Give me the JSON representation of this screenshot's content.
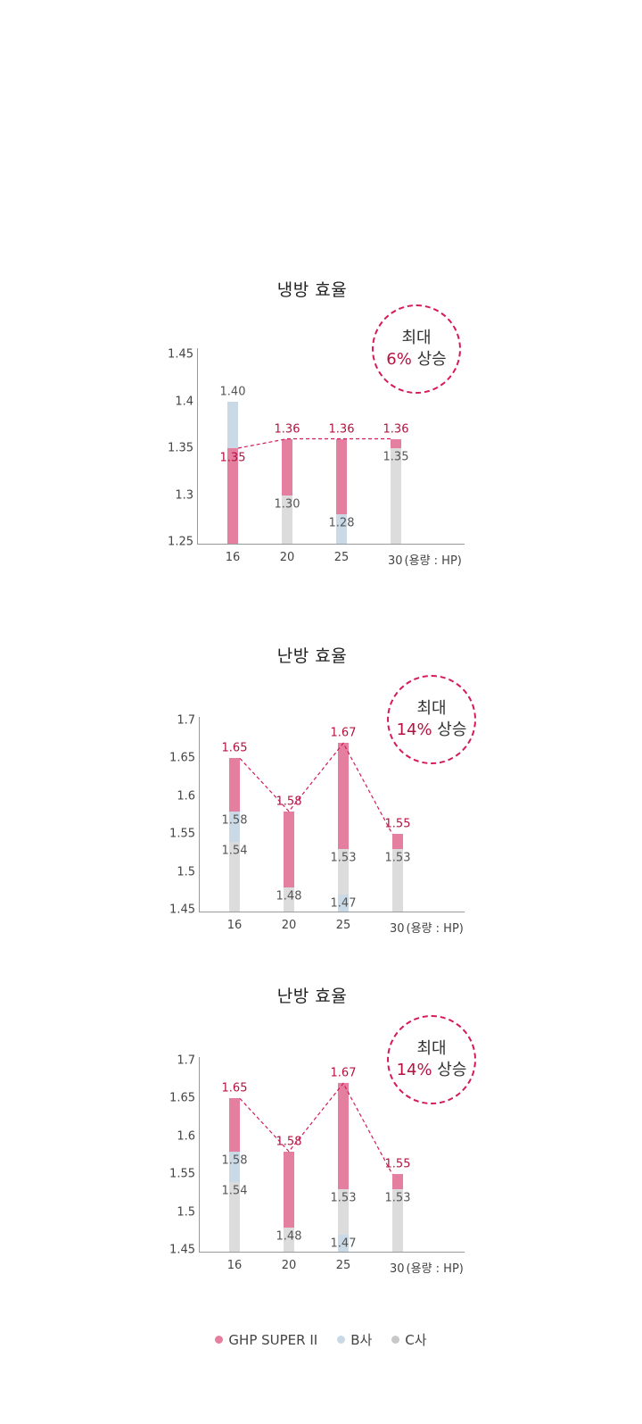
{
  "colors": {
    "ghp": "#e57f9f",
    "b": "#c9d9e6",
    "c": "#dcdcdc",
    "accent_text": "#b5123f",
    "badge_border": "#d6195a"
  },
  "legend": [
    {
      "label": "GHP SUPER II",
      "color": "#e57f9f"
    },
    {
      "label": "B사",
      "color": "#c9d9e6"
    },
    {
      "label": "C사",
      "color": "#c8c8c8"
    }
  ],
  "x_unit": "(용량 : HP)",
  "chart_data": [
    {
      "type": "bar",
      "title": "냉방 효율",
      "badge": {
        "line1": "최대",
        "pct": "6%",
        "suffix": "상승"
      },
      "categories": [
        "16",
        "20",
        "25",
        "30"
      ],
      "xlabel": "용량 : HP",
      "ylabel": "",
      "yticks": [
        "1.45",
        "1.4",
        "1.35",
        "1.3",
        "1.25"
      ],
      "ylim": [
        1.25,
        1.45
      ],
      "series": [
        {
          "name": "GHP SUPER II",
          "values": [
            1.35,
            1.36,
            1.36,
            1.36
          ]
        },
        {
          "name": "B사",
          "values": [
            1.4,
            null,
            1.28,
            null
          ]
        },
        {
          "name": "C사",
          "values": [
            null,
            1.3,
            null,
            1.35
          ]
        }
      ],
      "labels": [
        {
          "ghp": "1.35",
          "other": "1.40",
          "other_series": "B사"
        },
        {
          "ghp": "1.36",
          "other": "1.30",
          "other_series": "C사"
        },
        {
          "ghp": "1.36",
          "other": "1.28",
          "other_series": "B사"
        },
        {
          "ghp": "1.36",
          "other": "1.35",
          "other_series": "C사"
        }
      ],
      "grid": false,
      "legend_position": "bottom"
    },
    {
      "type": "bar",
      "title": "난방 효율",
      "badge": {
        "line1": "최대",
        "pct": "14%",
        "suffix": "상승"
      },
      "categories": [
        "16",
        "20",
        "25",
        "30"
      ],
      "xlabel": "용량 : HP",
      "ylabel": "",
      "yticks": [
        "1.7",
        "1.65",
        "1.6",
        "1.55",
        "1.5",
        "1.45"
      ],
      "ylim": [
        1.45,
        1.7
      ],
      "series": [
        {
          "name": "GHP SUPER II",
          "values": [
            1.65,
            1.58,
            1.67,
            1.55
          ]
        },
        {
          "name": "B사",
          "values": [
            1.58,
            null,
            1.47,
            null
          ]
        },
        {
          "name": "C사",
          "values": [
            1.54,
            1.48,
            1.53,
            1.53
          ]
        }
      ],
      "grid": false,
      "legend_position": "bottom"
    },
    {
      "type": "bar",
      "title": "난방 효율",
      "badge": {
        "line1": "최대",
        "pct": "14%",
        "suffix": "상승"
      },
      "categories": [
        "16",
        "20",
        "25",
        "30"
      ],
      "xlabel": "용량 : HP",
      "ylabel": "",
      "yticks": [
        "1.7",
        "1.65",
        "1.6",
        "1.55",
        "1.5",
        "1.45"
      ],
      "ylim": [
        1.45,
        1.7
      ],
      "series": [
        {
          "name": "GHP SUPER II",
          "values": [
            1.65,
            1.58,
            1.67,
            1.55
          ]
        },
        {
          "name": "B사",
          "values": [
            1.58,
            null,
            1.47,
            null
          ]
        },
        {
          "name": "C사",
          "values": [
            1.54,
            1.48,
            1.53,
            1.53
          ]
        }
      ],
      "grid": false,
      "legend_position": "bottom"
    }
  ]
}
